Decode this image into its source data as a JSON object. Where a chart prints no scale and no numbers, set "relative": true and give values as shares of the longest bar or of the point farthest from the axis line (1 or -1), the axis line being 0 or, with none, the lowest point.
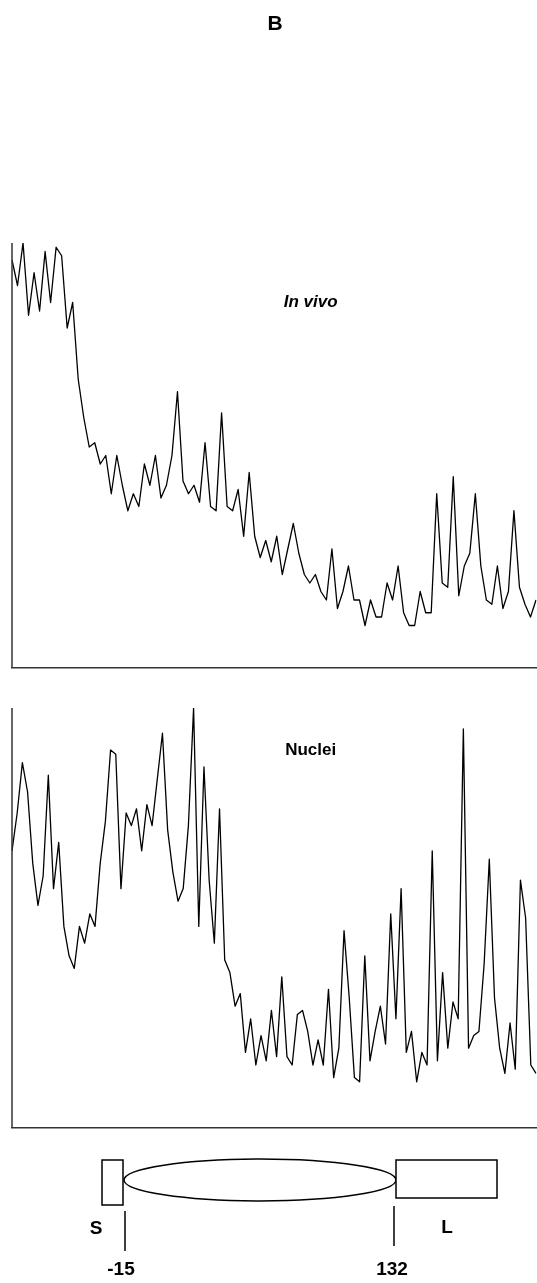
{
  "chart_data": [
    {
      "type": "line",
      "title": "In vivo",
      "annotations": [
        "B"
      ],
      "relative": true,
      "grid": false,
      "legend": false,
      "marker": "none",
      "line_style": "solid",
      "categories": [
        null,
        null,
        null,
        null,
        null,
        null,
        null,
        null,
        null,
        null,
        null,
        null,
        null,
        null,
        null,
        null,
        null,
        null,
        null,
        null,
        null,
        null,
        null,
        null,
        null,
        null,
        null,
        null,
        null,
        null,
        null,
        null,
        null,
        null,
        null,
        null,
        null,
        null,
        null,
        null,
        null,
        null,
        null,
        null,
        null,
        null,
        null,
        null,
        null,
        null,
        null,
        null,
        null,
        null,
        null,
        null,
        null,
        null,
        null,
        null,
        null,
        null,
        null,
        null,
        null,
        null,
        null,
        null,
        null,
        null,
        null,
        null,
        null,
        null,
        null,
        null,
        null,
        null,
        null,
        null,
        null,
        null,
        null,
        null,
        null,
        null,
        null,
        null,
        null,
        null,
        null,
        null,
        null,
        null,
        null,
        null
      ],
      "series": [
        {
          "color": "#000000",
          "values": [
            0.96,
            0.9,
            1.0,
            0.83,
            0.93,
            0.84,
            0.98,
            0.86,
            0.99,
            0.97,
            0.8,
            0.86,
            0.68,
            0.59,
            0.52,
            0.53,
            0.48,
            0.5,
            0.41,
            0.5,
            0.43,
            0.37,
            0.41,
            0.38,
            0.48,
            0.43,
            0.5,
            0.4,
            0.43,
            0.5,
            0.65,
            0.44,
            0.41,
            0.43,
            0.39,
            0.53,
            0.38,
            0.37,
            0.6,
            0.38,
            0.37,
            0.42,
            0.31,
            0.46,
            0.31,
            0.26,
            0.3,
            0.25,
            0.31,
            0.22,
            0.28,
            0.34,
            0.27,
            0.22,
            0.2,
            0.22,
            0.18,
            0.16,
            0.28,
            0.14,
            0.18,
            0.24,
            0.16,
            0.16,
            0.1,
            0.16,
            0.12,
            0.12,
            0.2,
            0.16,
            0.24,
            0.13,
            0.1,
            0.1,
            0.18,
            0.13,
            0.13,
            0.41,
            0.2,
            0.19,
            0.45,
            0.17,
            0.24,
            0.27,
            0.41,
            0.24,
            0.16,
            0.15,
            0.24,
            0.14,
            0.18,
            0.37,
            0.19,
            0.15,
            0.12,
            0.16
          ]
        }
      ]
    },
    {
      "type": "line",
      "title": "Nuclei",
      "annotations": [
        "S",
        "-15",
        "132",
        "L"
      ],
      "relative": true,
      "grid": false,
      "legend": false,
      "marker": "none",
      "line_style": "solid",
      "categories": [
        null,
        null,
        null,
        null,
        null,
        null,
        null,
        null,
        null,
        null,
        null,
        null,
        null,
        null,
        null,
        null,
        null,
        null,
        null,
        null,
        null,
        null,
        null,
        null,
        null,
        null,
        null,
        null,
        null,
        null,
        null,
        null,
        null,
        null,
        null,
        null,
        null,
        null,
        null,
        null,
        null,
        null,
        null,
        null,
        null,
        null,
        null,
        null,
        null,
        null,
        null,
        null,
        null,
        null,
        null,
        null,
        null,
        null,
        null,
        null,
        null,
        null,
        null,
        null,
        null,
        null,
        null,
        null,
        null,
        null,
        null,
        null,
        null,
        null,
        null,
        null,
        null,
        null,
        null,
        null,
        null,
        null,
        null,
        null,
        null,
        null,
        null,
        null,
        null,
        null,
        null,
        null,
        null,
        null,
        null,
        null,
        null,
        null,
        null,
        null,
        null,
        null
      ],
      "series": [
        {
          "color": "#000000",
          "values": [
            0.66,
            0.75,
            0.87,
            0.8,
            0.63,
            0.53,
            0.6,
            0.84,
            0.57,
            0.68,
            0.48,
            0.41,
            0.38,
            0.48,
            0.44,
            0.51,
            0.48,
            0.63,
            0.73,
            0.9,
            0.89,
            0.57,
            0.75,
            0.72,
            0.76,
            0.66,
            0.77,
            0.72,
            0.83,
            0.94,
            0.71,
            0.61,
            0.54,
            0.57,
            0.72,
            1.0,
            0.48,
            0.86,
            0.59,
            0.44,
            0.76,
            0.4,
            0.37,
            0.29,
            0.32,
            0.18,
            0.26,
            0.15,
            0.22,
            0.16,
            0.28,
            0.17,
            0.36,
            0.17,
            0.15,
            0.27,
            0.28,
            0.23,
            0.15,
            0.21,
            0.15,
            0.33,
            0.12,
            0.19,
            0.47,
            0.31,
            0.12,
            0.11,
            0.41,
            0.16,
            0.23,
            0.29,
            0.2,
            0.51,
            0.26,
            0.57,
            0.18,
            0.23,
            0.11,
            0.18,
            0.15,
            0.66,
            0.16,
            0.37,
            0.19,
            0.3,
            0.26,
            0.95,
            0.19,
            0.22,
            0.23,
            0.39,
            0.64,
            0.31,
            0.19,
            0.13,
            0.25,
            0.14,
            0.59,
            0.5,
            0.15,
            0.13
          ]
        }
      ]
    }
  ]
}
